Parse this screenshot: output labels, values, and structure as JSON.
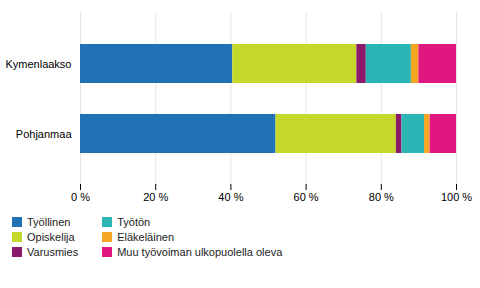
{
  "chart_data": {
    "type": "bar",
    "orientation": "horizontal",
    "stacked": true,
    "categories": [
      "Pohjanmaa",
      "Kymenlaakso"
    ],
    "series": [
      {
        "name": "Työllinen",
        "color": "#2171b5",
        "values": [
          52.0,
          40.5
        ]
      },
      {
        "name": "Opiskelija",
        "color": "#c5d92d",
        "values": [
          32.0,
          33.0
        ]
      },
      {
        "name": "Varusmies",
        "color": "#8c1a6a",
        "values": [
          1.5,
          2.5
        ]
      },
      {
        "name": "Työtön",
        "color": "#2bb5b5",
        "values": [
          6.0,
          12.0
        ]
      },
      {
        "name": "Eläkeläinen",
        "color": "#f5a623",
        "values": [
          1.5,
          2.0
        ]
      },
      {
        "name": "Muu työvoiman ulkopuolella oleva",
        "color": "#e0177e",
        "values": [
          7.0,
          10.0
        ]
      }
    ],
    "xlim": [
      0,
      100
    ],
    "xticks": [
      {
        "value": 0,
        "label": "0 %"
      },
      {
        "value": 20,
        "label": "20 %"
      },
      {
        "value": 40,
        "label": "40 %"
      },
      {
        "value": 60,
        "label": "60 %"
      },
      {
        "value": 80,
        "label": "80 %"
      },
      {
        "value": 100,
        "label": "100 %"
      }
    ],
    "grid": true,
    "legend": "bottom"
  }
}
